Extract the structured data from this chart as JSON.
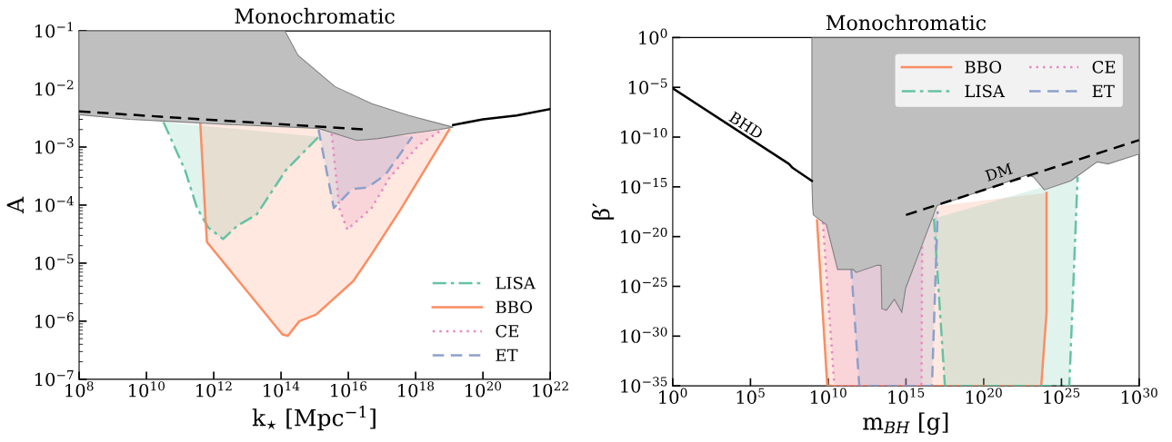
{
  "chart_data": [
    {
      "type": "area",
      "title": "Monochromatic",
      "xlabel": "k$_{⋆}$ [Mpc$^{−1}$]",
      "ylabel": "A",
      "log": "xy",
      "legend": "lower right",
      "grid": false,
      "xlim": [
        100000000.0,
        1e+22
      ],
      "ylim": [
        1e-07,
        0.1
      ],
      "xticks": [
        {
          "value": 100000000.0,
          "label": "10$^{8}$"
        },
        {
          "value": 10000000000.0,
          "label": "10$^{10}$"
        },
        {
          "value": 1000000000000.0,
          "label": "10$^{12}$"
        },
        {
          "value": 100000000000000.0,
          "label": "10$^{14}$"
        },
        {
          "value": 1e+16,
          "label": "10$^{16}$"
        },
        {
          "value": 1e+18,
          "label": "10$^{18}$"
        },
        {
          "value": 1e+20,
          "label": "10$^{20}$"
        },
        {
          "value": 1e+22,
          "label": "10$^{22}$"
        }
      ],
      "yticks": [
        {
          "value": 1e-07,
          "label": "10$^{−7}$"
        },
        {
          "value": 1e-06,
          "label": "10$^{−6}$"
        },
        {
          "value": 1e-05,
          "label": "10$^{−5}$"
        },
        {
          "value": 0.0001,
          "label": "10$^{−4}$"
        },
        {
          "value": 0.001,
          "label": "10$^{−3}$"
        },
        {
          "value": 0.01,
          "label": "10$^{−2}$"
        },
        {
          "value": 0.1,
          "label": "10$^{−1}$"
        }
      ],
      "series": [
        {
          "name": "LISA",
          "color": "#66c2a5",
          "line_style": "dashdot",
          "x": [
            32000000000.0,
            140000000000.0,
            320000000000.0,
            690000000000.0,
            1900000000000.0,
            5000000000000.0,
            19000000000000.0,
            140000000000000.0,
            1300000000000000.0
          ],
          "values": [
            0.0027,
            0.0004,
            8.9e-05,
            4.1e-05,
            2.6e-05,
            4.4e-05,
            6.9e-05,
            0.0004,
            0.0015
          ]
        },
        {
          "name": "BBO",
          "color": "#fc8d62",
          "line_style": "solid",
          "x": [
            400000000000.0,
            560000000000.0,
            630000000000.0,
            110000000000000.0,
            160000000000000.0,
            350000000000000.0,
            1100000000000000.0,
            1.4e+16,
            4.8e+16,
            3.7e+17,
            1e+19
          ],
          "values": [
            0.0025,
            6.8e-05,
            2.3e-05,
            5.9e-07,
            5.6e-07,
            1e-06,
            1.3e-06,
            4.9e-06,
            1.4e-05,
            8.7e-05,
            0.002
          ]
        },
        {
          "name": "CE",
          "color": "#e78ac3",
          "line_style": "dotted",
          "x": [
            3200000000000000.0,
            5400000000000000.0,
            9300000000000000.0,
            4.8e+16,
            1.7e+17,
            1.3e+18,
            5.4e+18
          ],
          "values": [
            0.0017,
            8.9e-05,
            3.8e-05,
            8.7e-05,
            0.0003,
            0.0011,
            0.0019
          ]
        },
        {
          "name": "ET",
          "color": "#8da0cb",
          "line_style": "dashed",
          "x": [
            1300000000000000.0,
            3700000000000000.0,
            1.3e+16,
            3.7e+16,
            1.3e+17,
            7.9e+17
          ],
          "values": [
            0.002,
            8.9e-05,
            0.00019,
            0.0002,
            0.00034,
            0.0015
          ]
        },
        {
          "color": "#bfbfbf",
          "x": [
            100000000.0,
            3200000000.0,
            32000000000.0,
            1100000000000.0,
            1300000000000000.0,
            1.8e+16,
            7.9e+16,
            6.3e+17,
            5e+18,
            1.3e+19,
            6.3e+17,
            5e+16,
            4000000000000000.0,
            320000000000000.0,
            130000000000000.0,
            100000000.0
          ],
          "values": [
            0.0036,
            0.003,
            0.0028,
            0.0025,
            0.0021,
            0.0013,
            0.0014,
            0.0017,
            0.002,
            0.0022,
            0.0035,
            0.0056,
            0.011,
            0.038,
            0.1,
            0.1
          ]
        },
        {
          "type": "line",
          "color": "#000000",
          "line_style": "solid",
          "x": [
            1.3e+19,
            1e+20,
            1e+21,
            1e+22
          ],
          "values": [
            0.0024,
            0.003,
            0.0035,
            0.0045
          ]
        },
        {
          "type": "line",
          "color": "#000000",
          "line_style": "dashed",
          "x": [
            100000000.0,
            3.2e+16
          ],
          "values": [
            0.0041,
            0.002
          ]
        }
      ]
    },
    {
      "type": "area",
      "title": "Monochromatic",
      "xlabel": "m$_{BH}$ [g]",
      "ylabel": "β′",
      "log": "xy",
      "legend": "upper right",
      "grid": false,
      "xlim": [
        1,
        1e+30
      ],
      "ylim": [
        1e-35,
        1
      ],
      "xticks": [
        {
          "value": 1,
          "label": "10$^{0}$"
        },
        {
          "value": 100000.0,
          "label": "10$^{5}$"
        },
        {
          "value": 10000000000.0,
          "label": "10$^{10}$"
        },
        {
          "value": 1000000000000000.0,
          "label": "10$^{15}$"
        },
        {
          "value": 1e+20,
          "label": "10$^{20}$"
        },
        {
          "value": 1e+25,
          "label": "10$^{25}$"
        },
        {
          "value": 1e+30,
          "label": "10$^{30}$"
        }
      ],
      "yticks": [
        {
          "value": 1e-35,
          "label": "10$^{−35}$"
        },
        {
          "value": 1e-30,
          "label": "10$^{−30}$"
        },
        {
          "value": 1e-25,
          "label": "10$^{−25}$"
        },
        {
          "value": 1e-20,
          "label": "10$^{−20}$"
        },
        {
          "value": 1e-15,
          "label": "10$^{−15}$"
        },
        {
          "value": 1e-10,
          "label": "10$^{−10}$"
        },
        {
          "value": 1e-05,
          "label": "10$^{−5}$"
        },
        {
          "value": 1,
          "label": "10$^{0}$"
        }
      ],
      "annotations": [
        "BHD",
        "DM"
      ],
      "series": [
        {
          "name": "BBO",
          "color": "#fc8d62",
          "line_style": "solid",
          "x": [
            1900000000.0,
            8700000000.0,
            5e+23,
            1.1e+24,
            1.1e+24
          ],
          "values": [
            4.3e-19,
            1e-35,
            1e-35,
            2.3e-28,
            2.5e-16
          ]
        },
        {
          "name": "LISA",
          "color": "#66c2a5",
          "line_style": "dashdot",
          "x": [
            6.3e+16,
            3.2e+17,
            3.2e+25,
            1.1e+26
          ],
          "values": [
            6.5e-19,
            1e-35,
            1e-35,
            1e-14
          ]
        },
        {
          "name": "CE",
          "color": "#e78ac3",
          "line_style": "dotted",
          "x": [
            4500000000.0,
            25000000000.0,
            1e+16,
            1.1e+16
          ],
          "values": [
            2.8e-19,
            1e-35,
            1e-35,
            1e-21
          ]
        },
        {
          "name": "ET",
          "color": "#8da0cb",
          "line_style": "dashed",
          "x": [
            300000000000.0,
            1000000000000.0,
            4.7e+16,
            1.1e+17
          ],
          "values": [
            7.9e-24,
            1e-35,
            1e-35,
            3.6e-18
          ]
        },
        {
          "color": "#bfbfbf",
          "x": [
            890000000.0,
            890000000.0,
            1000000000.0,
            1100000000.0,
            7600000000.0,
            40000000000.0,
            400000000000.0,
            630000000000.0,
            14000000000000.0,
            25000000000000.0,
            28000000000000.0,
            56000000000000.0,
            180000000000000.0,
            540000000000000.0,
            950000000000000.0,
            8900000000000000.0,
            1e+17,
            2.3e+18,
            6.3e+22,
            1.6e+23,
            7.9e+23,
            4e+25,
            2e+27,
            1e+28,
            1e+30,
            1e+30
          ],
          "values": [
            1,
            4e-15,
            1e-17,
            1.5e-18,
            1.6e-19,
            5e-24,
            5e-24,
            2.5e-24,
            1.3e-23,
            1.3e-23,
            5.6e-28,
            4e-28,
            5e-27,
            2.5e-28,
            6.3e-26,
            6.3e-22,
            1.3e-17,
            6.3e-17,
            1.6e-14,
            1e-14,
            5e-16,
            4e-15,
            3.2e-13,
            2e-13,
            2e-12,
            1
          ]
        },
        {
          "type": "line",
          "color": "#000000",
          "line_style": "solid",
          "x": [
            1,
            30000000.0,
            52000000.0,
            890000000.0
          ],
          "values": [
            7.9e-06,
            2e-13,
            7.9e-14,
            4e-15
          ]
        },
        {
          "type": "line",
          "color": "#000000",
          "line_style": "dashed",
          "x": [
            1000000000000000.0,
            1e+30
          ],
          "values": [
            1.5e-18,
            5e-11
          ]
        }
      ]
    }
  ]
}
